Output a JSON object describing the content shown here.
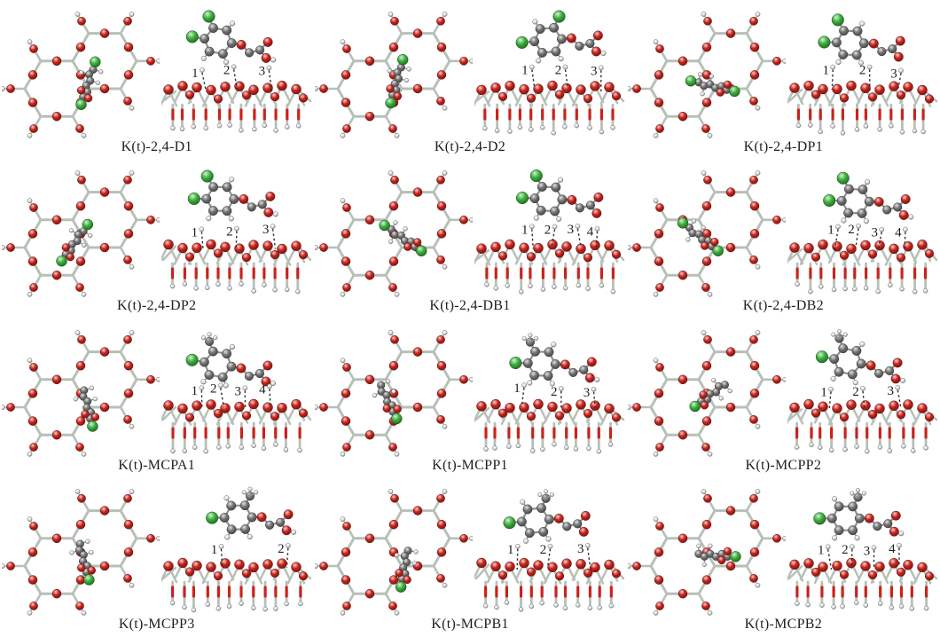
{
  "figure_background": "#ffffff",
  "caption_color": "#1e1e1e",
  "annotation_color": "#2e2e2e",
  "colors": {
    "oxygen": "#c9241c",
    "silicon_stick": "#b7c0b8",
    "carbon": "#757575",
    "carbon_stick": "#8f8f8f",
    "hydrogen": "#e8e8e8",
    "chlorine": "#3cb03c"
  },
  "atom_legend": [
    {
      "element": "oxygen",
      "color": "#c9241c"
    },
    {
      "element": "silicon",
      "color": "#b7c0b8"
    },
    {
      "element": "carbon",
      "color": "#757575"
    },
    {
      "element": "hydrogen",
      "color": "#e8e8e8"
    },
    {
      "element": "chlorine",
      "color": "#3cb03c"
    }
  ],
  "panels": [
    {
      "label": "K(t)-2,4-D1",
      "contacts": [
        "1",
        "2",
        "3"
      ],
      "chlorines": 2
    },
    {
      "label": "K(t)-2,4-D2",
      "contacts": [
        "1",
        "2",
        "3"
      ],
      "chlorines": 2
    },
    {
      "label": "K(t)-2,4-DP1",
      "contacts": [
        "1",
        "2",
        "3"
      ],
      "chlorines": 2
    },
    {
      "label": "K(t)-2,4-DP2",
      "contacts": [
        "1",
        "2",
        "3"
      ],
      "chlorines": 2
    },
    {
      "label": "K(t)-2,4-DB1",
      "contacts": [
        "1",
        "2",
        "3",
        "4"
      ],
      "chlorines": 2
    },
    {
      "label": "K(t)-2,4-DB2",
      "contacts": [
        "1",
        "2",
        "3",
        "4"
      ],
      "chlorines": 2
    },
    {
      "label": "K(t)-MCPA1",
      "contacts": [
        "1",
        "2",
        "3",
        "4"
      ],
      "chlorines": 1
    },
    {
      "label": "K(t)-MCPP1",
      "contacts": [
        "1",
        "2",
        "3"
      ],
      "chlorines": 1
    },
    {
      "label": "K(t)-MCPP2",
      "contacts": [
        "1",
        "2",
        "3"
      ],
      "chlorines": 1
    },
    {
      "label": "K(t)-MCPP3",
      "contacts": [
        "1",
        "2"
      ],
      "chlorines": 1
    },
    {
      "label": "K(t)-MCPB1",
      "contacts": [
        "1",
        "2",
        "3"
      ],
      "chlorines": 1
    },
    {
      "label": "K(t)-MCPB2",
      "contacts": [
        "1",
        "2",
        "3",
        "4"
      ],
      "chlorines": 1
    }
  ]
}
